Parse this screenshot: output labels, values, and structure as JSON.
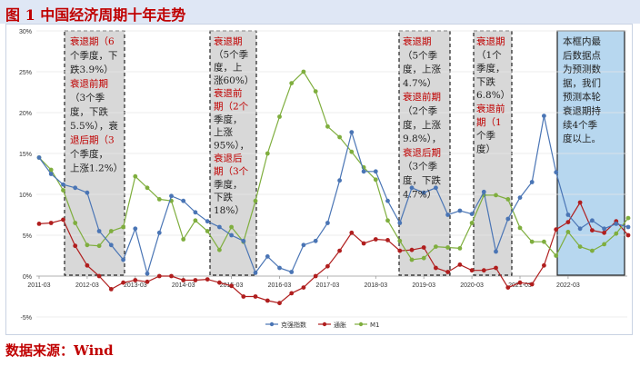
{
  "title": "图 1 中国经济周期十年走势",
  "source": "数据来源：Wind",
  "chart_data": {
    "type": "line",
    "y_ticks": [
      "30%",
      "25%",
      "20%",
      "15%",
      "10%",
      "5%",
      "0%",
      "-5%"
    ],
    "ylim": [
      -5,
      30
    ],
    "x_ticks": [
      "2011-03",
      "2012-03",
      "2013-03",
      "2014-03",
      "2015-03",
      "2016-03",
      "2017-03",
      "2018-03",
      "2019-03",
      "2020-03",
      "2021-03",
      "2022-03"
    ],
    "legend": [
      "克强指数",
      "通胀",
      "M1"
    ],
    "colors": {
      "keqiang": "#4a75b5",
      "inflation": "#b01e1e",
      "m1": "#7fae3e"
    },
    "series": [
      {
        "name": "克强指数",
        "values": [
          [
            0,
            14.5
          ],
          [
            0.25,
            12.5
          ],
          [
            0.5,
            11.2
          ],
          [
            0.75,
            10.8
          ],
          [
            1,
            10.2
          ],
          [
            1.25,
            5.5
          ],
          [
            1.5,
            3.8
          ],
          [
            1.75,
            2
          ],
          [
            2,
            5.8
          ],
          [
            2.25,
            0.3
          ],
          [
            2.5,
            5.3
          ],
          [
            2.75,
            9.8
          ],
          [
            3,
            9.2
          ],
          [
            3.25,
            7.8
          ],
          [
            3.5,
            6.7
          ],
          [
            3.75,
            6
          ],
          [
            4,
            5
          ],
          [
            4.25,
            4.3
          ],
          [
            4.5,
            0.4
          ],
          [
            4.75,
            2.4
          ],
          [
            5,
            1
          ],
          [
            5.25,
            0.5
          ],
          [
            5.5,
            3.8
          ],
          [
            5.75,
            4.3
          ],
          [
            6,
            6.5
          ],
          [
            6.25,
            11.7
          ],
          [
            6.5,
            17.6
          ],
          [
            6.75,
            12.8
          ],
          [
            7,
            12.8
          ],
          [
            7.25,
            9.2
          ],
          [
            7.5,
            6.5
          ],
          [
            7.75,
            10.8
          ],
          [
            8,
            10.2
          ],
          [
            8.25,
            10.8
          ],
          [
            8.5,
            7.5
          ],
          [
            8.75,
            8
          ],
          [
            9,
            7.6
          ],
          [
            9.25,
            10.3
          ],
          [
            9.5,
            3
          ],
          [
            9.75,
            7
          ],
          [
            10,
            9.6
          ],
          [
            10.25,
            11.5
          ],
          [
            10.5,
            19.6
          ],
          [
            10.75,
            12.7
          ],
          [
            11,
            7.5
          ],
          [
            11.25,
            5.8
          ],
          [
            11.5,
            6.8
          ],
          [
            11.75,
            5.8
          ],
          [
            12,
            6.4
          ],
          [
            12.25,
            6
          ]
        ]
      },
      {
        "name": "通胀",
        "values": [
          [
            0,
            6.4
          ],
          [
            0.25,
            6.5
          ],
          [
            0.5,
            6.9
          ],
          [
            0.75,
            3.7
          ],
          [
            1,
            1.3
          ],
          [
            1.25,
            0
          ],
          [
            1.5,
            -1.6
          ],
          [
            1.75,
            -0.8
          ],
          [
            2,
            -0.5
          ],
          [
            2.25,
            -0.7
          ],
          [
            2.5,
            0
          ],
          [
            2.75,
            0
          ],
          [
            3,
            -0.5
          ],
          [
            3.25,
            -0.5
          ],
          [
            3.5,
            -0.4
          ],
          [
            3.75,
            -0.8
          ],
          [
            4,
            -1.2
          ],
          [
            4.25,
            -2.5
          ],
          [
            4.5,
            -2.5
          ],
          [
            4.75,
            -3
          ],
          [
            5,
            -3.3
          ],
          [
            5.25,
            -2.1
          ],
          [
            5.5,
            -1.4
          ],
          [
            5.75,
            0
          ],
          [
            6,
            1.2
          ],
          [
            6.25,
            3.1
          ],
          [
            6.5,
            5.3
          ],
          [
            6.75,
            4
          ],
          [
            7,
            4.5
          ],
          [
            7.25,
            4.4
          ],
          [
            7.5,
            3.1
          ],
          [
            7.75,
            3.2
          ],
          [
            8,
            3.5
          ],
          [
            8.25,
            1
          ],
          [
            8.5,
            0.5
          ],
          [
            8.75,
            1.4
          ],
          [
            9,
            0.7
          ],
          [
            9.25,
            0.7
          ],
          [
            9.5,
            1
          ],
          [
            9.75,
            -1.4
          ],
          [
            10,
            -0.8
          ],
          [
            10.25,
            -1
          ],
          [
            10.5,
            1.3
          ],
          [
            10.75,
            5.7
          ],
          [
            11,
            6.6
          ],
          [
            11.25,
            9
          ],
          [
            11.5,
            5.6
          ],
          [
            11.75,
            5.3
          ],
          [
            12,
            6.7
          ],
          [
            12.25,
            5
          ]
        ]
      },
      {
        "name": "M1",
        "values": [
          [
            0,
            14.5
          ],
          [
            0.25,
            13
          ],
          [
            0.5,
            10.5
          ],
          [
            0.75,
            6.5
          ],
          [
            1,
            3.8
          ],
          [
            1.25,
            3.7
          ],
          [
            1.5,
            5.5
          ],
          [
            1.75,
            6
          ],
          [
            2,
            12.2
          ],
          [
            2.25,
            10.8
          ],
          [
            2.5,
            9.4
          ],
          [
            2.75,
            9.2
          ],
          [
            3,
            4.5
          ],
          [
            3.25,
            6.8
          ],
          [
            3.5,
            5.5
          ],
          [
            3.75,
            3.2
          ],
          [
            4,
            6
          ],
          [
            4.25,
            4.2
          ],
          [
            4.5,
            9.2
          ],
          [
            4.75,
            15
          ],
          [
            5,
            19.5
          ],
          [
            5.25,
            23.6
          ],
          [
            5.5,
            25
          ],
          [
            5.75,
            22.6
          ],
          [
            6,
            18.3
          ],
          [
            6.25,
            17
          ],
          [
            6.5,
            15.2
          ],
          [
            6.75,
            13.3
          ],
          [
            7,
            11.8
          ],
          [
            7.25,
            6.8
          ],
          [
            7.5,
            4.3
          ],
          [
            7.75,
            2
          ],
          [
            8,
            2.2
          ],
          [
            8.25,
            3.6
          ],
          [
            8.5,
            3.5
          ],
          [
            8.75,
            3.4
          ],
          [
            9,
            6.5
          ],
          [
            9.25,
            9.9
          ],
          [
            9.5,
            9.9
          ],
          [
            9.75,
            9.4
          ],
          [
            10,
            5.9
          ],
          [
            10.25,
            4.2
          ],
          [
            10.5,
            4.2
          ],
          [
            10.75,
            2.5
          ],
          [
            11,
            5.4
          ],
          [
            11.25,
            3.6
          ],
          [
            11.5,
            3.1
          ],
          [
            11.75,
            3.9
          ],
          [
            12,
            5.2
          ],
          [
            12.25,
            7.1
          ]
        ]
      }
    ],
    "annotations": [
      {
        "lines": [
          {
            "t": "衰退期（6",
            "c": "red"
          },
          {
            "t": "个季度，下",
            "c": "dark"
          },
          {
            "t": "跌3.9%）",
            "c": "dark"
          },
          {
            "t": "衰退前期",
            "c": "red"
          },
          {
            "t": "（3个季",
            "c": "dark"
          },
          {
            "t": "度，下跌",
            "c": "dark"
          },
          {
            "t": "5.5%），衰",
            "c": "dark"
          },
          {
            "t": "退后期（3",
            "c": "red"
          },
          {
            "t": "个季度，",
            "c": "dark"
          },
          {
            "t": "上涨1.2%）",
            "c": "dark"
          }
        ]
      },
      {
        "lines": [
          {
            "t": "衰退期",
            "c": "red"
          },
          {
            "t": "（5个季",
            "c": "dark"
          },
          {
            "t": "度，上",
            "c": "dark"
          },
          {
            "t": "涨60%）",
            "c": "dark"
          },
          {
            "t": "衰退前",
            "c": "red"
          },
          {
            "t": "期（2个",
            "c": "red"
          },
          {
            "t": "季度，",
            "c": "dark"
          },
          {
            "t": "上涨",
            "c": "dark"
          },
          {
            "t": "95%），",
            "c": "dark"
          },
          {
            "t": "衰退后",
            "c": "red"
          },
          {
            "t": "期（3个",
            "c": "red"
          },
          {
            "t": "季度，",
            "c": "dark"
          },
          {
            "t": "下跌",
            "c": "dark"
          },
          {
            "t": "18%）",
            "c": "dark"
          }
        ]
      },
      {
        "lines": [
          {
            "t": "衰退期",
            "c": "red"
          },
          {
            "t": "（5个季",
            "c": "dark"
          },
          {
            "t": "度，上涨",
            "c": "dark"
          },
          {
            "t": "4.7%）",
            "c": "dark"
          },
          {
            "t": "衰退前期",
            "c": "red"
          },
          {
            "t": "（2个季",
            "c": "dark"
          },
          {
            "t": "度，上涨",
            "c": "dark"
          },
          {
            "t": "9.8%），",
            "c": "dark"
          },
          {
            "t": "衰退后期",
            "c": "red"
          },
          {
            "t": "（3个季",
            "c": "dark"
          },
          {
            "t": "度，下跌",
            "c": "dark"
          },
          {
            "t": "4.7%）",
            "c": "dark"
          }
        ]
      },
      {
        "lines": [
          {
            "t": "衰退期",
            "c": "red"
          },
          {
            "t": "（1个",
            "c": "dark"
          },
          {
            "t": "季度，",
            "c": "dark"
          },
          {
            "t": "下跌",
            "c": "dark"
          },
          {
            "t": "6.8%）",
            "c": "dark"
          },
          {
            "t": "衰退前",
            "c": "red"
          },
          {
            "t": "期（1",
            "c": "red"
          },
          {
            "t": "个季",
            "c": "dark"
          },
          {
            "t": "度）",
            "c": "dark"
          }
        ]
      },
      {
        "lines": [
          {
            "t": "本框内最",
            "c": "dark"
          },
          {
            "t": "后数据点",
            "c": "dark"
          },
          {
            "t": "为预测数",
            "c": "dark"
          },
          {
            "t": "据，我们",
            "c": "dark"
          },
          {
            "t": "预测本轮",
            "c": "dark"
          },
          {
            "t": "衰退期持",
            "c": "dark"
          },
          {
            "t": "续4个季",
            "c": "dark"
          },
          {
            "t": "度以上。",
            "c": "dark"
          }
        ]
      }
    ]
  }
}
